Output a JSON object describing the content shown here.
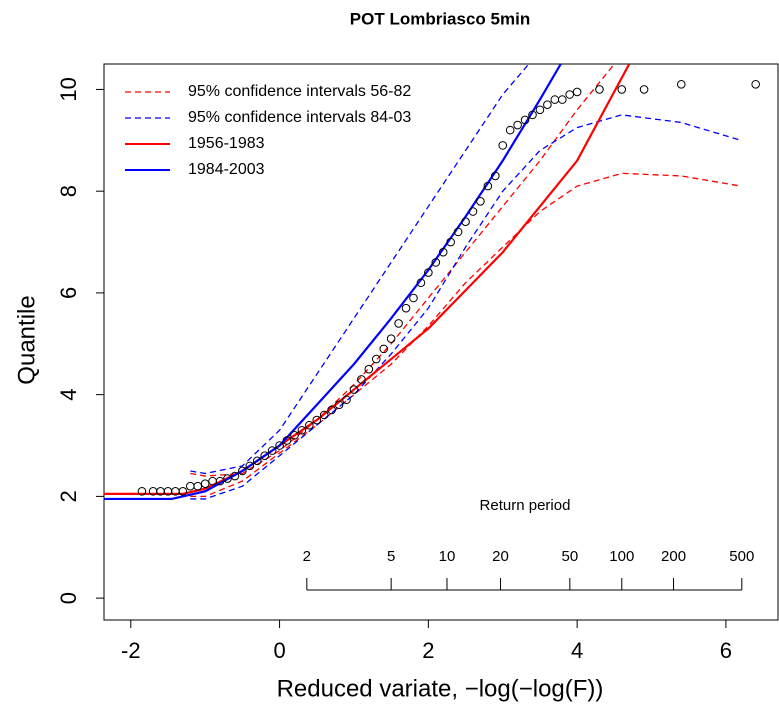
{
  "chart_data": {
    "type": "line",
    "title": "POT Lombriasco 5min",
    "x_label": "Reduced variate,  −log(−log(F))",
    "y_label": "Quantile",
    "xlim": [
      -2.36,
      6.7
    ],
    "ylim": [
      -0.43,
      10.5
    ],
    "xticks": [
      -2,
      0,
      2,
      4,
      6
    ],
    "yticks": [
      0,
      2,
      4,
      6,
      8,
      10
    ],
    "legend": "topleft",
    "return_period_label": "Return period",
    "return_periods": [
      2,
      5,
      10,
      20,
      50,
      100,
      200,
      500
    ],
    "series": [
      {
        "name": "95% confidence intervals 56-82",
        "type": "line",
        "dash": true,
        "color": "#ff0000",
        "x": [
          -1.2,
          -1,
          -0.5,
          0,
          0.5,
          1,
          1.5,
          2,
          2.5,
          3,
          3.5,
          4,
          4.5
        ],
        "y": [
          2.45,
          2.4,
          2.45,
          2.9,
          3.5,
          4.2,
          5.0,
          5.9,
          6.8,
          7.7,
          8.6,
          9.6,
          10.5
        ]
      },
      {
        "type": "line",
        "dash": true,
        "color": "#ff0000",
        "x": [
          -1.2,
          -1,
          -0.5,
          0,
          0.5,
          1,
          1.5,
          2,
          2.5,
          3,
          3.5,
          4,
          4.6,
          5.4,
          6.2
        ],
        "y": [
          2.0,
          2.0,
          2.3,
          2.85,
          3.4,
          4.0,
          4.6,
          5.35,
          6.2,
          6.9,
          7.6,
          8.1,
          8.35,
          8.3,
          8.1
        ]
      },
      {
        "name": "95% confidence intervals 84-03",
        "type": "line",
        "dash": true,
        "color": "#0000ff",
        "x": [
          -1.2,
          -1,
          -0.5,
          0,
          0.5,
          1,
          1.5,
          2,
          2.5,
          3,
          3.35
        ],
        "y": [
          2.5,
          2.45,
          2.6,
          3.3,
          4.4,
          5.5,
          6.6,
          7.7,
          8.8,
          9.9,
          10.5
        ]
      },
      {
        "type": "line",
        "dash": true,
        "color": "#0000ff",
        "x": [
          -1.2,
          -1,
          -0.5,
          0,
          0.5,
          1,
          1.5,
          2,
          2.5,
          3,
          3.5,
          4,
          4.6,
          5.4,
          6.2
        ],
        "y": [
          1.95,
          1.95,
          2.2,
          2.8,
          3.4,
          4.0,
          4.8,
          5.7,
          6.9,
          8.0,
          8.8,
          9.25,
          9.5,
          9.35,
          9.0
        ]
      },
      {
        "name": "1956-1983",
        "type": "line",
        "dash": false,
        "color": "#ff0000",
        "x": [
          -2.36,
          -1.3,
          -1,
          -0.5,
          0,
          0.5,
          1,
          1.5,
          2,
          2.5,
          3,
          3.5,
          4,
          4.7
        ],
        "y": [
          2.05,
          2.05,
          2.15,
          2.5,
          3.0,
          3.5,
          4.1,
          4.7,
          5.3,
          6.05,
          6.8,
          7.7,
          8.6,
          10.5
        ]
      },
      {
        "name": "1984-2003",
        "type": "line",
        "dash": false,
        "color": "#0000ff",
        "x": [
          -2.36,
          -1.45,
          -1,
          -0.5,
          0,
          0.5,
          1,
          1.5,
          2,
          2.5,
          3,
          3.5,
          3.78
        ],
        "y": [
          1.95,
          1.95,
          2.1,
          2.5,
          3.0,
          3.8,
          4.6,
          5.5,
          6.45,
          7.5,
          8.6,
          9.8,
          10.5
        ]
      },
      {
        "type": "scatter",
        "color": "#000000",
        "x": [
          -1.85,
          -1.7,
          -1.6,
          -1.5,
          -1.4,
          -1.3,
          -1.2,
          -1.1,
          -1.0,
          -0.9,
          -0.8,
          -0.7,
          -0.6,
          -0.5,
          -0.4,
          -0.3,
          -0.2,
          -0.1,
          0.0,
          0.1,
          0.2,
          0.3,
          0.4,
          0.5,
          0.6,
          0.7,
          0.8,
          0.9,
          1.0,
          1.1,
          1.2,
          1.3,
          1.4,
          1.5,
          1.6,
          1.7,
          1.8,
          1.9,
          2.0,
          2.1,
          2.2,
          2.3,
          2.4,
          2.5,
          2.6,
          2.7,
          2.8,
          2.9,
          3.0,
          3.1,
          3.2,
          3.3,
          3.4,
          3.5,
          3.6,
          3.7,
          3.8,
          3.9,
          4.0,
          4.3,
          4.6,
          4.9,
          5.4,
          6.4
        ],
        "y": [
          2.1,
          2.1,
          2.1,
          2.1,
          2.1,
          2.1,
          2.2,
          2.2,
          2.25,
          2.3,
          2.3,
          2.35,
          2.4,
          2.5,
          2.6,
          2.7,
          2.8,
          2.9,
          3.0,
          3.1,
          3.2,
          3.3,
          3.4,
          3.5,
          3.6,
          3.7,
          3.8,
          3.9,
          4.1,
          4.3,
          4.5,
          4.7,
          4.9,
          5.1,
          5.4,
          5.7,
          5.9,
          6.2,
          6.4,
          6.6,
          6.8,
          7.0,
          7.2,
          7.4,
          7.6,
          7.8,
          8.1,
          8.3,
          8.9,
          9.2,
          9.3,
          9.4,
          9.5,
          9.6,
          9.7,
          9.8,
          9.8,
          9.9,
          9.95,
          10,
          10,
          10,
          10.1,
          10.1
        ]
      }
    ]
  }
}
